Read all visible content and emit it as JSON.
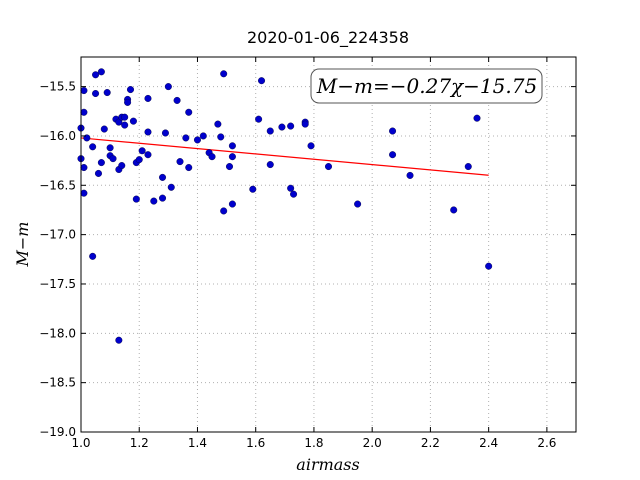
{
  "chart_data": {
    "type": "scatter",
    "title": "2020-01-06_224358",
    "xlabel": "airmass",
    "ylabel": "M−m",
    "xlim": [
      1.0,
      2.7
    ],
    "ylim": [
      -19.0,
      -15.2
    ],
    "y_inverted": true,
    "grid": true,
    "xticks": [
      "1.0",
      "1.2",
      "1.4",
      "1.6",
      "1.8",
      "2.0",
      "2.2",
      "2.4",
      "2.6"
    ],
    "yticks": [
      "−15.5",
      "−16.0",
      "−16.5",
      "−17.0",
      "−17.5",
      "−18.0",
      "−18.5",
      "−19.0"
    ],
    "annotation": "M−m=−0.27χ−15.75",
    "fit_line": {
      "slope": -0.27,
      "intercept": -15.75,
      "x_range": [
        1.0,
        2.4
      ],
      "color": "#ff0000"
    },
    "point_color": "#0000cc",
    "points": [
      [
        1.0,
        -15.92
      ],
      [
        1.0,
        -16.23
      ],
      [
        1.01,
        -15.54
      ],
      [
        1.01,
        -15.76
      ],
      [
        1.01,
        -16.32
      ],
      [
        1.01,
        -16.58
      ],
      [
        1.02,
        -16.02
      ],
      [
        1.04,
        -16.11
      ],
      [
        1.04,
        -17.22
      ],
      [
        1.05,
        -15.38
      ],
      [
        1.05,
        -15.57
      ],
      [
        1.06,
        -16.38
      ],
      [
        1.07,
        -15.35
      ],
      [
        1.07,
        -16.27
      ],
      [
        1.08,
        -15.93
      ],
      [
        1.09,
        -15.56
      ],
      [
        1.1,
        -16.12
      ],
      [
        1.1,
        -16.2
      ],
      [
        1.11,
        -16.23
      ],
      [
        1.12,
        -15.83
      ],
      [
        1.13,
        -15.86
      ],
      [
        1.13,
        -16.34
      ],
      [
        1.13,
        -18.07
      ],
      [
        1.14,
        -15.81
      ],
      [
        1.14,
        -16.3
      ],
      [
        1.15,
        -15.81
      ],
      [
        1.15,
        -15.89
      ],
      [
        1.16,
        -15.63
      ],
      [
        1.16,
        -15.66
      ],
      [
        1.17,
        -15.53
      ],
      [
        1.18,
        -15.85
      ],
      [
        1.19,
        -16.27
      ],
      [
        1.19,
        -16.64
      ],
      [
        1.2,
        -16.24
      ],
      [
        1.21,
        -16.15
      ],
      [
        1.23,
        -15.62
      ],
      [
        1.23,
        -15.96
      ],
      [
        1.23,
        -16.19
      ],
      [
        1.25,
        -16.66
      ],
      [
        1.28,
        -16.42
      ],
      [
        1.28,
        -16.63
      ],
      [
        1.29,
        -15.97
      ],
      [
        1.3,
        -15.5
      ],
      [
        1.31,
        -16.52
      ],
      [
        1.33,
        -15.64
      ],
      [
        1.34,
        -16.26
      ],
      [
        1.36,
        -16.02
      ],
      [
        1.37,
        -15.76
      ],
      [
        1.37,
        -16.32
      ],
      [
        1.4,
        -16.04
      ],
      [
        1.42,
        -16.0
      ],
      [
        1.44,
        -16.17
      ],
      [
        1.45,
        -16.21
      ],
      [
        1.47,
        -15.88
      ],
      [
        1.48,
        -16.01
      ],
      [
        1.49,
        -15.37
      ],
      [
        1.49,
        -16.76
      ],
      [
        1.51,
        -16.31
      ],
      [
        1.52,
        -16.1
      ],
      [
        1.52,
        -16.69
      ],
      [
        1.52,
        -16.21
      ],
      [
        1.59,
        -16.54
      ],
      [
        1.61,
        -15.83
      ],
      [
        1.62,
        -15.44
      ],
      [
        1.65,
        -15.95
      ],
      [
        1.65,
        -16.29
      ],
      [
        1.69,
        -15.91
      ],
      [
        1.72,
        -15.9
      ],
      [
        1.72,
        -16.53
      ],
      [
        1.73,
        -16.59
      ],
      [
        1.77,
        -15.86
      ],
      [
        1.77,
        -15.88
      ],
      [
        1.79,
        -16.1
      ],
      [
        1.85,
        -16.31
      ],
      [
        1.95,
        -16.69
      ],
      [
        2.07,
        -15.95
      ],
      [
        2.07,
        -16.19
      ],
      [
        2.13,
        -16.4
      ],
      [
        2.28,
        -16.75
      ],
      [
        2.33,
        -16.31
      ],
      [
        2.36,
        -15.82
      ],
      [
        2.4,
        -17.32
      ]
    ]
  }
}
